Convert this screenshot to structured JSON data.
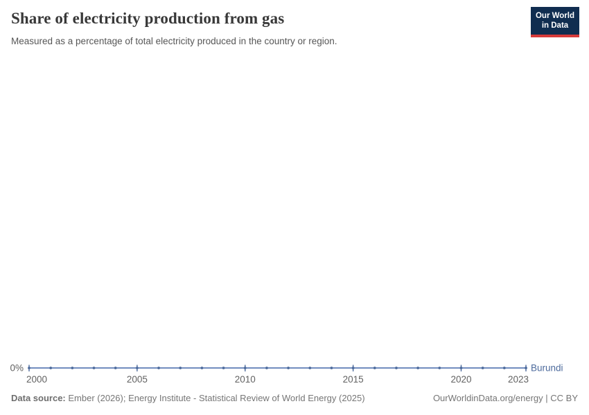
{
  "header": {
    "title": "Share of electricity production from gas",
    "subtitle": "Measured as a percentage of total electricity produced in the country or region."
  },
  "logo": {
    "line1": "Our World",
    "line2": "in Data",
    "bg_color": "#102d50",
    "accent_color": "#d73a3a"
  },
  "chart_data": {
    "type": "line",
    "title": "Share of electricity production from gas",
    "entity": "Burundi",
    "unit": "%",
    "x": [
      2000,
      2001,
      2002,
      2003,
      2004,
      2005,
      2006,
      2007,
      2008,
      2009,
      2010,
      2011,
      2012,
      2013,
      2014,
      2015,
      2016,
      2017,
      2018,
      2019,
      2020,
      2021,
      2022,
      2023
    ],
    "series": [
      {
        "name": "Burundi",
        "values": [
          0,
          0,
          0,
          0,
          0,
          0,
          0,
          0,
          0,
          0,
          0,
          0,
          0,
          0,
          0,
          0,
          0,
          0,
          0,
          0,
          0,
          0,
          0,
          0
        ]
      }
    ],
    "x_tick_labels": [
      "2000",
      "2005",
      "2010",
      "2015",
      "2020",
      "2023"
    ],
    "x_ticks": [
      2000,
      2005,
      2010,
      2015,
      2020,
      2023
    ],
    "y_ticks": [
      "0%"
    ],
    "y_axis_label": "0%",
    "ylim": [
      0,
      0
    ],
    "grid": false,
    "legend_position": "end-of-line",
    "marker": "dot-every-year",
    "line_color": "#4c6a9c",
    "line_stroke_color": "#5d7cb4",
    "tick_label_color": "#616161"
  },
  "footer": {
    "source_label": "Data source:",
    "source_text": " Ember (2026); Energy Institute - Statistical Review of World Energy (2025)",
    "credit": "OurWorldinData.org/energy | CC BY"
  }
}
